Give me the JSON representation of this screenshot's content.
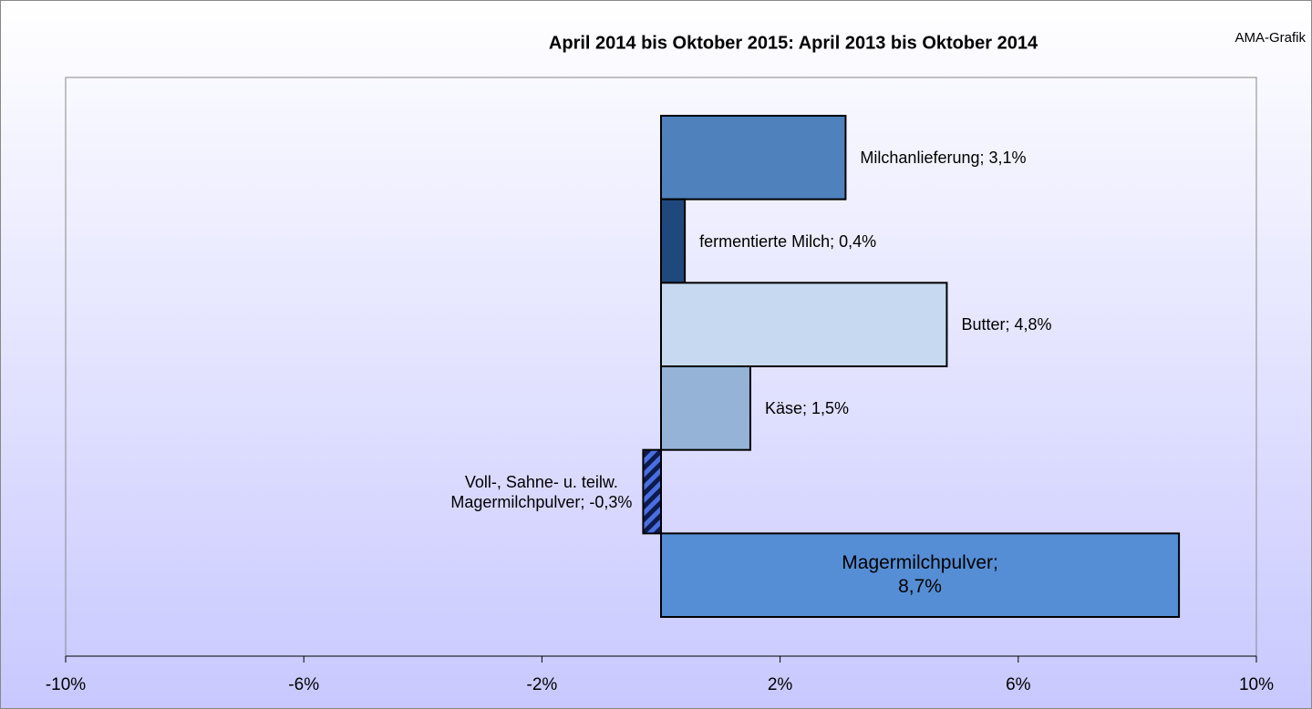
{
  "chart_data": {
    "type": "bar",
    "orientation": "horizontal",
    "title": "April 2014 bis Oktober 2015: April 2013 bis Oktober 2014",
    "source": "AMA-Grafik",
    "values": [
      3.1,
      0.4,
      4.8,
      1.5,
      -0.3,
      8.7
    ],
    "value_labels": [
      "Milchanlieferung; 3,1%",
      "fermentierte Milch; 0,4%",
      "Butter; 4,8%",
      "Käse; 1,5%",
      "Voll-, Sahne- u. teilw.\nMagermilchpulver; -0,3%",
      "Magermilchpulver;\n8,7%"
    ],
    "label_positions": [
      "right",
      "right",
      "right",
      "right",
      "left",
      "inside"
    ],
    "colors": [
      "#4f81bd",
      "#1f497d",
      "#c6d9f1",
      "#95b3d7",
      "#4a6fe0",
      "#558ed5"
    ],
    "hatched": [
      false,
      false,
      false,
      false,
      true,
      false
    ],
    "xlim": [
      -10,
      10
    ],
    "xticks": [
      {
        "value": -10,
        "label": "-10%"
      },
      {
        "value": -6,
        "label": "-6%"
      },
      {
        "value": -2,
        "label": "-2%"
      },
      {
        "value": 2,
        "label": "2%"
      },
      {
        "value": 6,
        "label": "6%"
      },
      {
        "value": 10,
        "label": "10%"
      }
    ],
    "grid": false
  }
}
